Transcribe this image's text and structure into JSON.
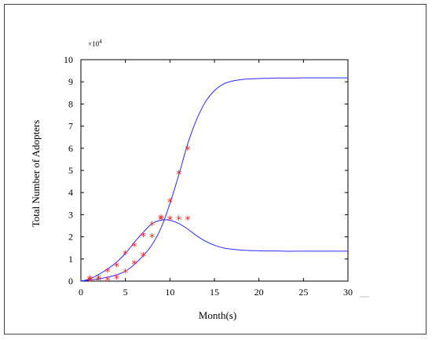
{
  "chart_data": {
    "type": "line",
    "xlabel": "Month(s)",
    "ylabel": "Total Number of Adopters",
    "y_multiplier": "×10",
    "y_multiplier_exp": "4",
    "xlim": [
      0,
      30
    ],
    "ylim": [
      0,
      10
    ],
    "x_ticks": [
      "0",
      "5",
      "10",
      "15",
      "20",
      "25",
      "30"
    ],
    "y_ticks": [
      "0",
      "1",
      "2",
      "3",
      "4",
      "5",
      "6",
      "7",
      "8",
      "9",
      "10"
    ],
    "grid": false,
    "legend": "none",
    "series": [
      {
        "kind": "line",
        "color": "#2a2aff",
        "x": [
          0,
          1,
          2,
          3,
          4,
          5,
          6,
          7,
          8,
          9,
          10,
          11,
          12,
          13,
          14,
          15,
          16,
          17,
          18,
          19,
          20,
          21,
          22,
          23,
          24,
          25,
          26,
          27,
          28,
          29,
          30
        ],
        "y": [
          0.0,
          0.05,
          0.1,
          0.18,
          0.28,
          0.45,
          0.75,
          1.15,
          1.65,
          2.4,
          3.5,
          4.8,
          6.2,
          7.3,
          8.1,
          8.6,
          8.9,
          9.03,
          9.1,
          9.13,
          9.15,
          9.16,
          9.17,
          9.17,
          9.17,
          9.18,
          9.18,
          9.18,
          9.18,
          9.18,
          9.18
        ]
      },
      {
        "kind": "line",
        "color": "#2a2aff",
        "x": [
          0,
          1,
          2,
          3,
          4,
          5,
          6,
          7,
          8,
          9,
          10,
          11,
          12,
          13,
          14,
          15,
          16,
          17,
          18,
          19,
          20,
          21,
          22,
          23,
          24,
          25,
          26,
          27,
          28,
          29,
          30
        ],
        "y": [
          0.0,
          0.1,
          0.3,
          0.55,
          0.85,
          1.25,
          1.75,
          2.2,
          2.6,
          2.75,
          2.75,
          2.6,
          2.35,
          2.05,
          1.8,
          1.62,
          1.5,
          1.44,
          1.4,
          1.38,
          1.37,
          1.36,
          1.36,
          1.35,
          1.35,
          1.35,
          1.35,
          1.35,
          1.35,
          1.35,
          1.35
        ]
      },
      {
        "kind": "markers",
        "marker": "*",
        "color": "#ff2020",
        "x": [
          1,
          2,
          3,
          4,
          5,
          6,
          7,
          8,
          9,
          10,
          11,
          12
        ],
        "y": [
          0.1,
          0.15,
          0.45,
          0.7,
          1.25,
          1.6,
          2.05,
          2.55,
          2.85,
          2.8,
          2.8,
          2.8
        ]
      },
      {
        "kind": "markers",
        "marker": "*",
        "color": "#ff2020",
        "x": [
          1,
          2,
          3,
          4,
          5,
          6,
          7,
          8,
          9,
          10,
          11,
          12
        ],
        "y": [
          0.05,
          0.05,
          0.05,
          0.15,
          0.4,
          0.8,
          1.15,
          2.0,
          2.8,
          3.6,
          4.85,
          5.95
        ]
      }
    ]
  }
}
